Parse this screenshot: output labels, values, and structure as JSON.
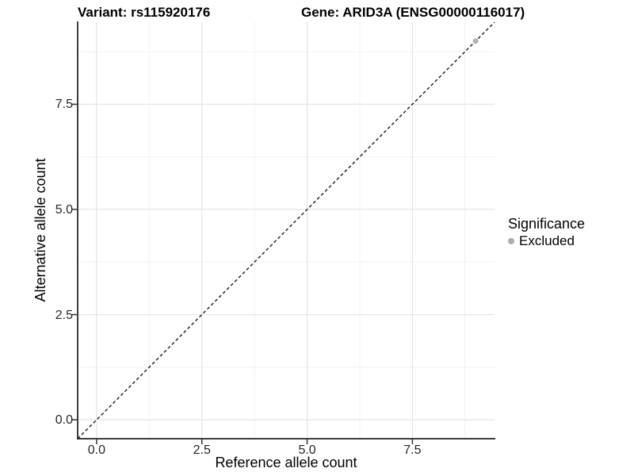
{
  "figure": {
    "title_left": "Variant: rs115920176",
    "title_right": "Gene: ARID3A (ENSG00000116017)"
  },
  "chart_data": {
    "type": "scatter",
    "title": "Variant: rs115920176   Gene: ARID3A (ENSG00000116017)",
    "xlabel": "Reference allele count",
    "ylabel": "Alternative allele count",
    "xlim": [
      -0.45,
      9.45
    ],
    "ylim": [
      -0.45,
      9.45
    ],
    "x_major_ticks": [
      0,
      2.5,
      5,
      7.5
    ],
    "x_tick_labels": [
      "0.0",
      "2.5",
      "5.0",
      "7.5"
    ],
    "y_major_ticks": [
      0,
      2.5,
      5,
      7.5
    ],
    "y_tick_labels": [
      "0.0",
      "2.5",
      "5.0",
      "7.5"
    ],
    "x_minor_ticks": [
      1.25,
      3.75,
      6.25,
      8.75
    ],
    "y_minor_ticks": [
      1.25,
      3.75,
      6.25,
      8.75
    ],
    "grid": true,
    "reference_line": {
      "slope": 1,
      "intercept": 0,
      "style": "dashed",
      "color": "#1a1a1a"
    },
    "series": [
      {
        "name": "Excluded",
        "marker": "circle",
        "color": "#b3b3b3",
        "points": [
          {
            "x": 9,
            "y": 9
          }
        ]
      }
    ],
    "legend": {
      "title": "Significance",
      "position": "right",
      "entries": [
        {
          "label": "Excluded",
          "color": "#aeaeae"
        }
      ]
    },
    "colors": {
      "grid_major": "#e4e4e4",
      "grid_minor": "#f0f0f0",
      "axis_line": "#3d3d3d",
      "tick_mark": "#333333",
      "tick_label": "#262626",
      "panel_bg": "#ffffff"
    }
  }
}
